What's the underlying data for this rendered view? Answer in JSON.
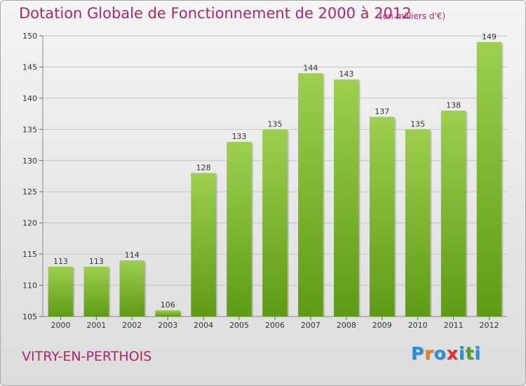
{
  "chart_data": {
    "type": "bar",
    "title": "Dotation Globale de Fonctionnement de 2000 à 2012",
    "subtitle": "(en milliers d'€)",
    "categories": [
      "2000",
      "2001",
      "2002",
      "2003",
      "2004",
      "2005",
      "2006",
      "2007",
      "2008",
      "2009",
      "2010",
      "2011",
      "2012"
    ],
    "values": [
      113,
      113,
      114,
      106,
      128,
      133,
      135,
      144,
      143,
      137,
      135,
      138,
      149
    ],
    "ylim": [
      105,
      150
    ],
    "yticks": [
      105,
      110,
      115,
      120,
      125,
      130,
      135,
      140,
      145,
      150
    ],
    "grid": true,
    "bar_color_top": "#9ecf50",
    "bar_color_bottom": "#5f9a16"
  },
  "footer": {
    "city": "VITRY-EN-PERTHOIS"
  },
  "logo": {
    "letters": [
      "P",
      "r",
      "o",
      "x",
      "i",
      "t",
      "i"
    ],
    "colors": [
      "#2b8fd6",
      "#f07c10",
      "#2b8fd6",
      "#e03030",
      "#2b8fd6",
      "#4aa12e",
      "#2b8fd6"
    ]
  }
}
